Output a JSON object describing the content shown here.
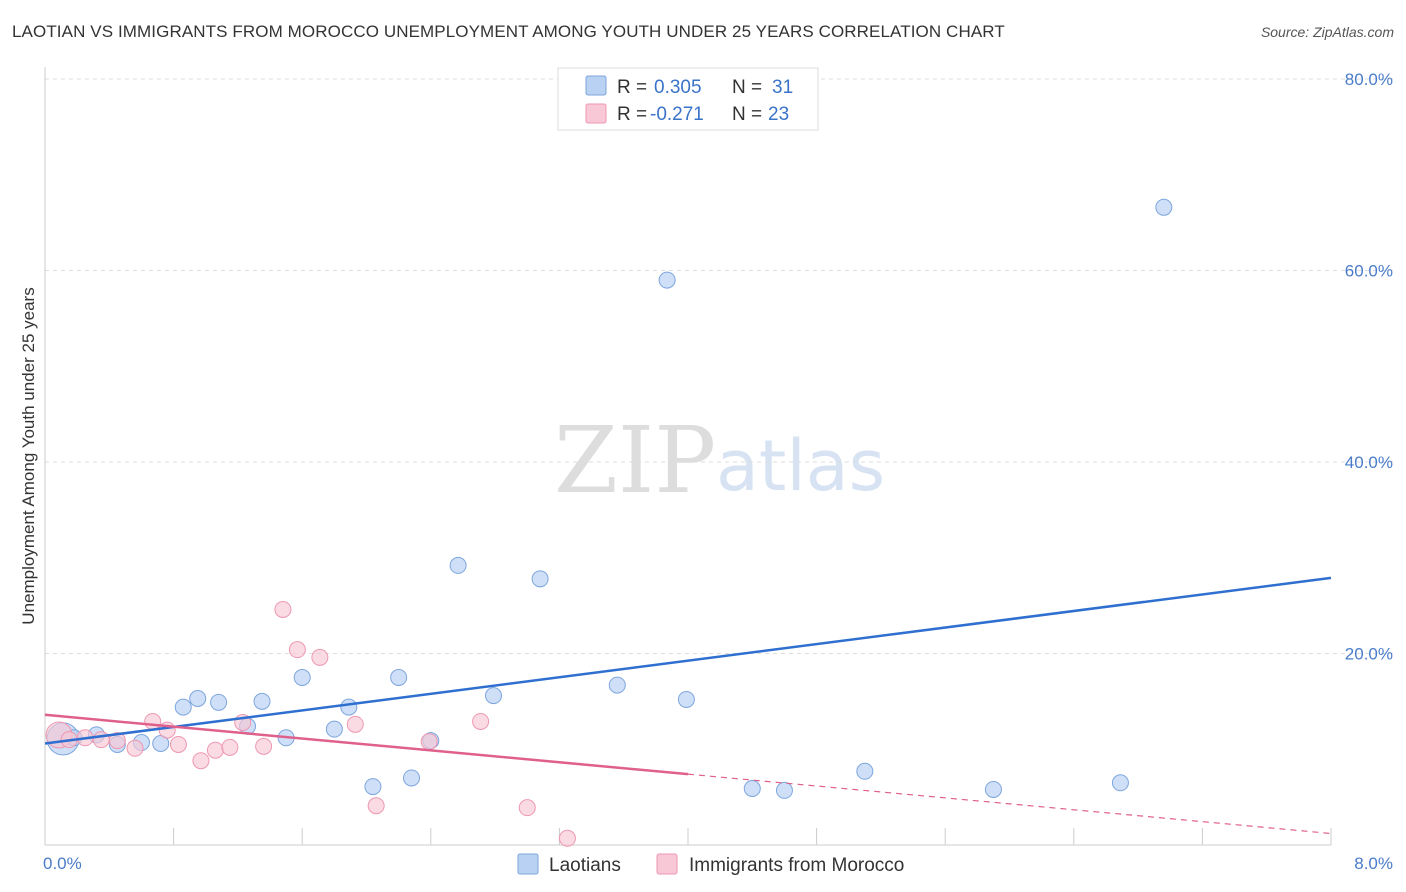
{
  "title": "LAOTIAN VS IMMIGRANTS FROM MOROCCO UNEMPLOYMENT AMONG YOUTH UNDER 25 YEARS CORRELATION CHART",
  "source": "Source: ZipAtlas.com",
  "watermark": {
    "part1": "ZIP",
    "part2": "atlas"
  },
  "legend": {
    "rows": [
      {
        "r_label": "R =",
        "r_value": "0.305",
        "n_label": "N =",
        "n_value": "31"
      },
      {
        "r_label": "R =",
        "r_value": "-0.271",
        "n_label": "N =",
        "n_value": "23"
      }
    ]
  },
  "bottom_legend": {
    "series1": "Laotians",
    "series2": "Immigrants from Morocco"
  },
  "colors": {
    "laotians_fill": "#b9d2f3",
    "laotians_stroke": "#7ea6de",
    "laotians_line": "#2f6fd0",
    "morocco_fill": "#f8c8d6",
    "morocco_stroke": "#ee97b1",
    "morocco_line": "#e0608c",
    "grid": "#dddddd",
    "tick_label": "#4a7cc9"
  },
  "chart_data": {
    "type": "scatter",
    "title": "LAOTIAN VS IMMIGRANTS FROM MOROCCO UNEMPLOYMENT AMONG YOUTH UNDER 25 YEARS CORRELATION CHART",
    "xlabel": "",
    "ylabel": "Unemployment Among Youth under 25 years",
    "xlim": [
      0,
      8
    ],
    "ylim": [
      0,
      80
    ],
    "x_tick_labels": [
      "0.0%",
      "8.0%"
    ],
    "y_ticks": [
      20,
      40,
      60,
      80
    ],
    "y_tick_labels": [
      "20.0%",
      "40.0%",
      "60.0%",
      "80.0%"
    ],
    "grid": true,
    "series": [
      {
        "name": "Laotians",
        "r": 0.305,
        "n": 31,
        "points": [
          [
            0.05,
            11.6
          ],
          [
            0.18,
            11.2
          ],
          [
            0.32,
            11.5
          ],
          [
            0.45,
            10.5
          ],
          [
            0.6,
            10.7
          ],
          [
            0.72,
            10.6
          ],
          [
            0.86,
            14.4
          ],
          [
            0.95,
            15.3
          ],
          [
            1.08,
            14.9
          ],
          [
            1.26,
            12.4
          ],
          [
            1.35,
            15.0
          ],
          [
            1.5,
            11.2
          ],
          [
            1.6,
            17.5
          ],
          [
            1.8,
            12.1
          ],
          [
            1.89,
            14.4
          ],
          [
            2.04,
            6.1
          ],
          [
            2.2,
            17.5
          ],
          [
            2.28,
            7.0
          ],
          [
            2.4,
            10.9
          ],
          [
            2.57,
            29.2
          ],
          [
            2.79,
            15.6
          ],
          [
            3.08,
            27.8
          ],
          [
            3.56,
            16.7
          ],
          [
            3.87,
            59.0
          ],
          [
            3.99,
            15.2
          ],
          [
            4.4,
            5.9
          ],
          [
            4.6,
            5.7
          ],
          [
            5.1,
            7.7
          ],
          [
            5.9,
            5.8
          ],
          [
            6.69,
            6.5
          ],
          [
            6.96,
            66.6
          ]
        ],
        "trendline": {
          "x": [
            0.0,
            8.0
          ],
          "y": [
            10.6,
            27.9
          ]
        }
      },
      {
        "name": "Immigrants from Morocco",
        "r": -0.271,
        "n": 23,
        "points": [
          [
            0.05,
            11.7
          ],
          [
            0.15,
            11.0
          ],
          [
            0.25,
            11.2
          ],
          [
            0.35,
            11.0
          ],
          [
            0.45,
            10.9
          ],
          [
            0.56,
            10.1
          ],
          [
            0.67,
            12.9
          ],
          [
            0.76,
            12.0
          ],
          [
            0.83,
            10.5
          ],
          [
            0.97,
            8.8
          ],
          [
            1.06,
            9.9
          ],
          [
            1.15,
            10.2
          ],
          [
            1.23,
            12.8
          ],
          [
            1.36,
            10.3
          ],
          [
            1.48,
            24.6
          ],
          [
            1.57,
            20.4
          ],
          [
            1.71,
            19.6
          ],
          [
            1.93,
            12.6
          ],
          [
            2.06,
            4.1
          ],
          [
            2.39,
            10.8
          ],
          [
            2.71,
            12.9
          ],
          [
            3.0,
            3.9
          ],
          [
            3.25,
            0.7
          ]
        ],
        "trendline": {
          "x": [
            0.0,
            4.0
          ],
          "y": [
            13.6,
            7.4
          ]
        },
        "trendline_extension": {
          "x": [
            4.0,
            8.0
          ],
          "y": [
            7.4,
            1.2
          ]
        }
      }
    ]
  }
}
